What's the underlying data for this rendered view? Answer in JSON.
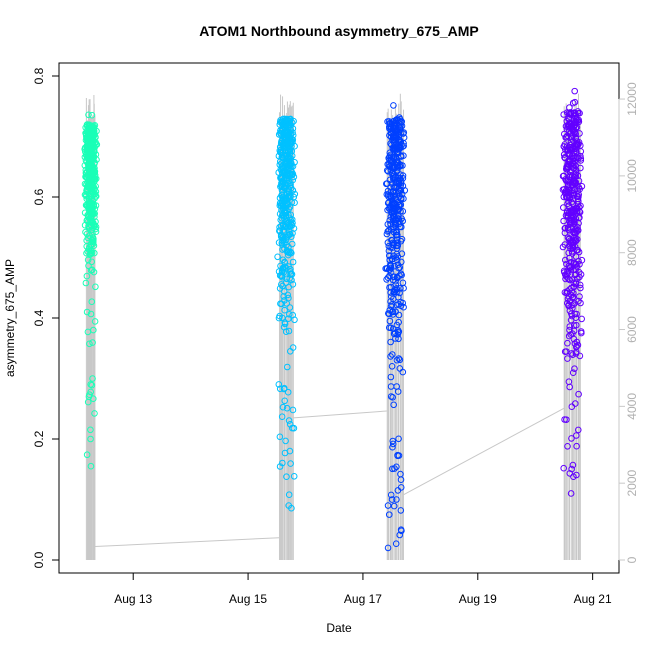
{
  "chart_data": {
    "type": "scatter",
    "title": "ATOM1 Northbound asymmetry_675_AMP",
    "xlabel": "Date",
    "ylabel": "asymmetry_675_AMP",
    "x_type": "date",
    "xlim": [
      "2023-08-11T22:00",
      "2023-08-21T06:00"
    ],
    "x_ticks": [
      {
        "label": "Aug 13",
        "value": "2023-08-13"
      },
      {
        "label": "Aug 15",
        "value": "2023-08-15"
      },
      {
        "label": "Aug 17",
        "value": "2023-08-17"
      },
      {
        "label": "Aug 19",
        "value": "2023-08-19"
      },
      {
        "label": "Aug 21",
        "value": "2023-08-21"
      }
    ],
    "ylim": [
      0.0,
      0.8
    ],
    "y_ticks": [
      "0.0",
      "0.2",
      "0.4",
      "0.6",
      "0.8"
    ],
    "y2_lim": [
      0,
      12600
    ],
    "y2_ticks": [
      "0",
      "2000",
      "4000",
      "6000",
      "8000",
      "10000",
      "12000"
    ],
    "y2_color": "#c8c8c8",
    "grid": false,
    "legend": "none",
    "marker": "open-circle",
    "series": [
      {
        "color": "#1affb7",
        "x_start": "2023-08-12T04:30",
        "x_end": "2023-08-12T08:00",
        "y_range": [
          0.15,
          0.74
        ],
        "y_core": [
          0.45,
          0.72
        ],
        "sample_points": [
          {
            "x": "2023-08-12T04:45",
            "y": 0.174
          },
          {
            "x": "2023-08-12T05:30",
            "y": 0.27
          },
          {
            "x": "2023-08-12T06:10",
            "y": 0.2
          },
          {
            "x": "2023-08-12T06:20",
            "y": 0.155
          },
          {
            "x": "2023-08-12T07:00",
            "y": 0.3
          },
          {
            "x": "2023-08-12T07:20",
            "y": 0.38
          }
        ]
      },
      {
        "color": "#00c1ff",
        "x_start": "2023-08-15T13:00",
        "x_end": "2023-08-15T19:00",
        "y_range": [
          0.08,
          0.745
        ],
        "y_core": [
          0.35,
          0.73
        ],
        "sample_points": [
          {
            "x": "2023-08-15T17:00",
            "y": 0.09
          },
          {
            "x": "2023-08-15T17:30",
            "y": 0.18
          },
          {
            "x": "2023-08-15T18:30",
            "y": 0.218
          },
          {
            "x": "2023-08-15T18:45",
            "y": 0.248
          }
        ]
      },
      {
        "color": "#0040ff",
        "x_start": "2023-08-17T10:00",
        "x_end": "2023-08-17T17:00",
        "y_range": [
          0.02,
          0.76
        ],
        "y_core": [
          0.3,
          0.73
        ],
        "sample_points": [
          {
            "x": "2023-08-17T10:30",
            "y": 0.02
          },
          {
            "x": "2023-08-17T10:30",
            "y": 0.09
          },
          {
            "x": "2023-08-17T11:00",
            "y": 0.075
          },
          {
            "x": "2023-08-17T14:00",
            "y": 0.1
          },
          {
            "x": "2023-08-17T16:00",
            "y": 0.12
          }
        ]
      },
      {
        "color": "#6200ff",
        "x_start": "2023-08-20T12:00",
        "x_end": "2023-08-20T19:00",
        "y_range": [
          0.11,
          0.775
        ],
        "y_core": [
          0.3,
          0.74
        ],
        "sample_points": [
          {
            "x": "2023-08-20T13:00",
            "y": 0.232
          },
          {
            "x": "2023-08-20T15:00",
            "y": 0.11
          },
          {
            "x": "2023-08-20T18:00",
            "y": 0.215
          },
          {
            "x": "2023-08-20T16:30",
            "y": 0.775
          }
        ]
      }
    ],
    "secondary_line": {
      "color": "#c8c8c8",
      "description_axis": "right",
      "points": [
        {
          "x": "2023-08-12T08:00",
          "y2": 350
        },
        {
          "x": "2023-08-15T13:00",
          "y2": 580
        },
        {
          "x": "2023-08-15T19:00",
          "y2": 3700
        },
        {
          "x": "2023-08-17T10:00",
          "y2": 3880
        },
        {
          "x": "2023-08-17T17:00",
          "y2": 1700
        },
        {
          "x": "2023-08-20T12:00",
          "y2": 3950
        }
      ],
      "segment_max": 12400
    }
  }
}
